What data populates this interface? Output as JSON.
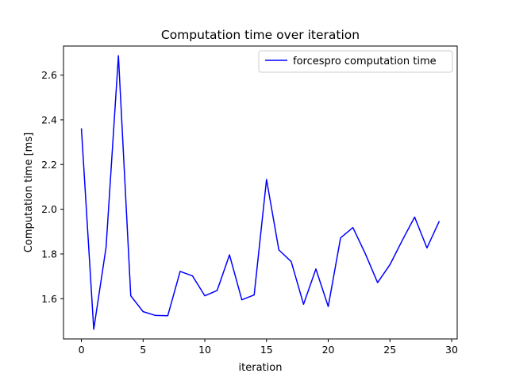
{
  "chart_data": {
    "type": "line",
    "title": "Computation time over iteration",
    "xlabel": "iteration",
    "ylabel": "Computation time [ms]",
    "xlim": [
      -1.45,
      30.45
    ],
    "ylim": [
      1.42,
      2.73
    ],
    "xticks": [
      0,
      5,
      10,
      15,
      20,
      25,
      30
    ],
    "yticks": [
      1.6,
      1.8,
      2.0,
      2.2,
      2.4,
      2.6
    ],
    "grid": false,
    "legend_position": "top-right",
    "series": [
      {
        "name": "forcespro computation time",
        "color": "#0000ff",
        "x": [
          0,
          1,
          2,
          3,
          4,
          5,
          6,
          7,
          8,
          9,
          10,
          11,
          12,
          13,
          14,
          15,
          16,
          17,
          18,
          19,
          20,
          21,
          22,
          23,
          24,
          25,
          26,
          27,
          28,
          29
        ],
        "values": [
          2.362,
          1.463,
          1.83,
          2.687,
          1.613,
          1.542,
          1.525,
          1.524,
          1.722,
          1.702,
          1.613,
          1.637,
          1.796,
          1.595,
          1.617,
          2.133,
          1.818,
          1.766,
          1.575,
          1.733,
          1.565,
          1.872,
          1.918,
          1.802,
          1.672,
          1.752,
          1.861,
          1.965,
          1.827,
          1.947
        ]
      }
    ]
  }
}
